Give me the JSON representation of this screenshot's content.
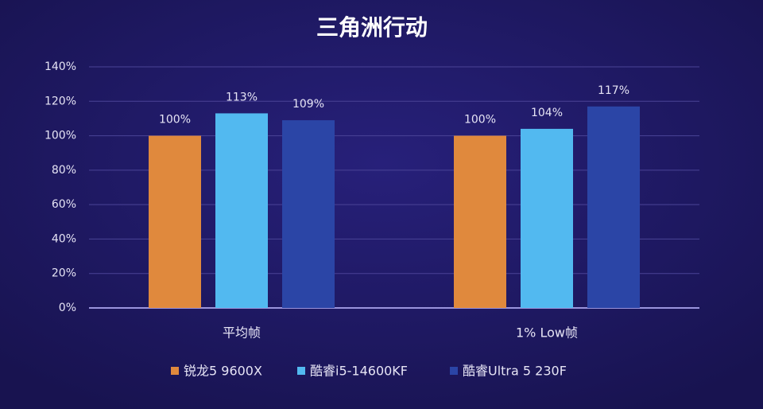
{
  "chart_data": {
    "type": "bar",
    "title": "三角洲行动",
    "categories": [
      "平均帧",
      "1% Low帧"
    ],
    "series": [
      {
        "name": "锐龙5 9600X",
        "color": "#e0893d",
        "values": [
          100,
          100
        ],
        "value_labels": [
          "100%",
          "100%"
        ]
      },
      {
        "name": "酷睿i5-14600KF",
        "color": "#52b9f0",
        "values": [
          113,
          104
        ],
        "value_labels": [
          "113%",
          "104%"
        ]
      },
      {
        "name": "酷睿Ultra 5 230F",
        "color": "#2b45a6",
        "values": [
          109,
          117
        ],
        "value_labels": [
          "109%",
          "117%"
        ]
      }
    ],
    "ylim": [
      0,
      140
    ],
    "yticks": [
      {
        "value": 0,
        "label": "0%"
      },
      {
        "value": 20,
        "label": "20%"
      },
      {
        "value": 40,
        "label": "40%"
      },
      {
        "value": 60,
        "label": "60%"
      },
      {
        "value": 80,
        "label": "80%"
      },
      {
        "value": 100,
        "label": "100%"
      },
      {
        "value": 120,
        "label": "120%"
      },
      {
        "value": 140,
        "label": "140%"
      }
    ],
    "grid": true,
    "legend": "bottom"
  }
}
